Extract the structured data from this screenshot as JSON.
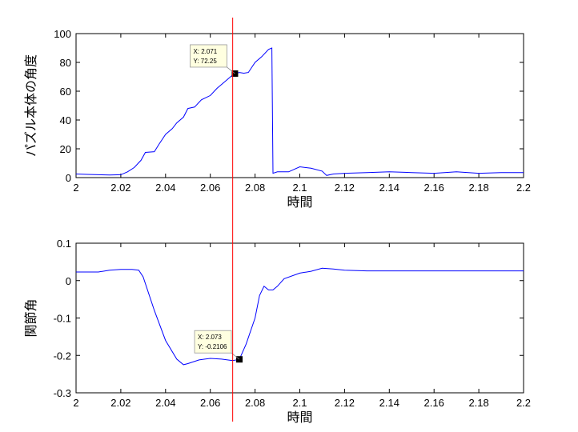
{
  "chart_data": [
    {
      "type": "line",
      "xlabel": "時間",
      "ylabel": "パズル本体の角度",
      "xlim": [
        2,
        2.2
      ],
      "ylim": [
        0,
        100
      ],
      "xticks": [
        "2",
        "2.02",
        "2.04",
        "2.06",
        "2.08",
        "2.1",
        "2.12",
        "2.14",
        "2.16",
        "2.18",
        "2.2"
      ],
      "yticks": [
        "0",
        "20",
        "40",
        "60",
        "80",
        "100"
      ],
      "grid": false,
      "series_color": "#0000ff",
      "x": [
        2.0,
        2.005,
        2.01,
        2.015,
        2.02,
        2.023,
        2.026,
        2.029,
        2.031,
        2.035,
        2.037,
        2.04,
        2.043,
        2.045,
        2.048,
        2.05,
        2.053,
        2.056,
        2.06,
        2.063,
        2.066,
        2.069,
        2.071,
        2.073,
        2.075,
        2.077,
        2.08,
        2.083,
        2.086,
        2.0875,
        2.088,
        2.09,
        2.095,
        2.1,
        2.105,
        2.11,
        2.112,
        2.115,
        2.12,
        2.13,
        2.14,
        2.15,
        2.16,
        2.17,
        2.18,
        2.19,
        2.2
      ],
      "values": [
        2.5,
        2.2,
        2.0,
        1.8,
        2.0,
        4.0,
        7.0,
        12.0,
        17.5,
        18.0,
        23.0,
        30.0,
        34.0,
        38.0,
        42.0,
        48.0,
        49.0,
        54.0,
        57.0,
        62.0,
        66.0,
        70.0,
        72.25,
        73.0,
        72.5,
        73.0,
        80.0,
        84.0,
        89.0,
        90.0,
        3.0,
        4.0,
        4.0,
        7.5,
        6.5,
        4.5,
        1.5,
        2.5,
        3.0,
        3.5,
        4.0,
        3.5,
        3.0,
        4.0,
        3.0,
        3.5,
        3.5
      ],
      "marker": {
        "x": 2.071,
        "y": 72.25,
        "label_x": "X: 2.071",
        "label_y": "Y: 72.25"
      },
      "cursor_x": 2.07
    },
    {
      "type": "line",
      "xlabel": "時間",
      "ylabel": "関節角",
      "xlim": [
        2,
        2.2
      ],
      "ylim": [
        -0.3,
        0.1
      ],
      "xticks": [
        "2",
        "2.02",
        "2.04",
        "2.06",
        "2.08",
        "2.1",
        "2.12",
        "2.14",
        "2.16",
        "2.18",
        "2.2"
      ],
      "yticks": [
        "-0.3",
        "-0.2",
        "-0.1",
        "0",
        "0.1"
      ],
      "grid": false,
      "series_color": "#0000ff",
      "x": [
        2.0,
        2.01,
        2.015,
        2.02,
        2.025,
        2.028,
        2.03,
        2.035,
        2.04,
        2.045,
        2.048,
        2.05,
        2.055,
        2.06,
        2.065,
        2.07,
        2.073,
        2.076,
        2.08,
        2.082,
        2.084,
        2.086,
        2.088,
        2.09,
        2.093,
        2.1,
        2.105,
        2.11,
        2.115,
        2.12,
        2.13,
        2.15,
        2.2
      ],
      "values": [
        0.023,
        0.023,
        0.028,
        0.03,
        0.03,
        0.028,
        0.01,
        -0.08,
        -0.16,
        -0.21,
        -0.225,
        -0.222,
        -0.212,
        -0.208,
        -0.21,
        -0.214,
        -0.2106,
        -0.17,
        -0.1,
        -0.04,
        -0.015,
        -0.025,
        -0.025,
        -0.015,
        0.005,
        0.02,
        0.025,
        0.033,
        0.031,
        0.028,
        0.026,
        0.026,
        0.026
      ],
      "marker": {
        "x": 2.073,
        "y": -0.2106,
        "label_x": "X: 2.073",
        "label_y": "Y: -0.2106"
      },
      "cursor_x": 2.07
    }
  ],
  "cursor_color": "#ff0000"
}
